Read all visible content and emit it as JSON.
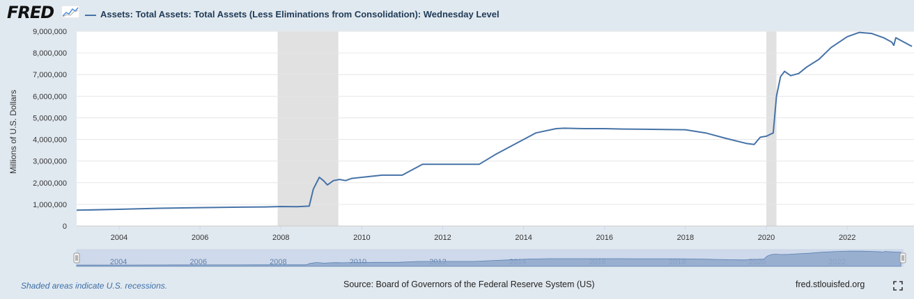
{
  "header": {
    "logo_text": "FRED",
    "legend_label": "Assets: Total Assets: Total Assets (Less Eliminations from Consolidation): Wednesday Level"
  },
  "footer": {
    "recession_note": "Shaded areas indicate U.S. recessions.",
    "source": "Source: Board of Governors of the Federal Reserve System (US)",
    "site": "fred.stlouisfed.org"
  },
  "colors": {
    "series": "#4572a7",
    "recession": "#e1e1e1",
    "navigator_fill": "#b9c7dd"
  },
  "chart_data": {
    "type": "line",
    "title": "Assets: Total Assets: Total Assets (Less Eliminations from Consolidation): Wednesday Level",
    "ylabel": "Millions of U.S. Dollars",
    "xlim": [
      2002.95,
      2023.65
    ],
    "ylim": [
      0,
      9000000
    ],
    "yticks": [
      0,
      1000000,
      2000000,
      3000000,
      4000000,
      5000000,
      6000000,
      7000000,
      8000000,
      9000000
    ],
    "ytick_labels": [
      "0",
      "1,000,000",
      "2,000,000",
      "3,000,000",
      "4,000,000",
      "5,000,000",
      "6,000,000",
      "7,000,000",
      "8,000,000",
      "9,000,000"
    ],
    "xticks": [
      2004,
      2006,
      2008,
      2010,
      2012,
      2014,
      2016,
      2018,
      2020,
      2022
    ],
    "xtick_labels": [
      "2004",
      "2006",
      "2008",
      "2010",
      "2012",
      "2014",
      "2016",
      "2018",
      "2020",
      "2022"
    ],
    "recessions": [
      [
        2007.92,
        2009.42
      ],
      [
        2020.0,
        2020.25
      ]
    ],
    "series": [
      {
        "name": "Total Assets",
        "x": [
          2002.95,
          2004.0,
          2005.0,
          2006.0,
          2007.0,
          2007.6,
          2008.0,
          2008.4,
          2008.7,
          2008.8,
          2008.95,
          2009.05,
          2009.15,
          2009.3,
          2009.45,
          2009.6,
          2009.75,
          2010.0,
          2010.5,
          2011.0,
          2011.5,
          2012.0,
          2012.5,
          2012.9,
          2013.3,
          2013.8,
          2014.3,
          2014.8,
          2015.0,
          2015.5,
          2016.0,
          2016.5,
          2017.0,
          2017.5,
          2018.0,
          2018.5,
          2019.0,
          2019.5,
          2019.7,
          2019.85,
          2020.0,
          2020.17,
          2020.25,
          2020.35,
          2020.45,
          2020.6,
          2020.8,
          2021.0,
          2021.3,
          2021.6,
          2022.0,
          2022.3,
          2022.6,
          2022.9,
          2023.1,
          2023.15,
          2023.2,
          2023.35,
          2023.6
        ],
        "values": [
          730000,
          770000,
          820000,
          850000,
          870000,
          880000,
          900000,
          890000,
          920000,
          1700000,
          2250000,
          2100000,
          1900000,
          2100000,
          2150000,
          2100000,
          2200000,
          2250000,
          2350000,
          2350000,
          2850000,
          2850000,
          2850000,
          2850000,
          3300000,
          3800000,
          4300000,
          4500000,
          4520000,
          4500000,
          4500000,
          4480000,
          4470000,
          4460000,
          4450000,
          4300000,
          4050000,
          3820000,
          3770000,
          4100000,
          4150000,
          4300000,
          6000000,
          6900000,
          7150000,
          6950000,
          7050000,
          7350000,
          7700000,
          8250000,
          8750000,
          8950000,
          8900000,
          8700000,
          8500000,
          8350000,
          8700000,
          8550000,
          8300000
        ]
      }
    ]
  },
  "navigator": {
    "year_labels": [
      "2004",
      "2006",
      "2008",
      "2010",
      "2012",
      "2014",
      "2016",
      "2018",
      "2020",
      "2022"
    ]
  }
}
